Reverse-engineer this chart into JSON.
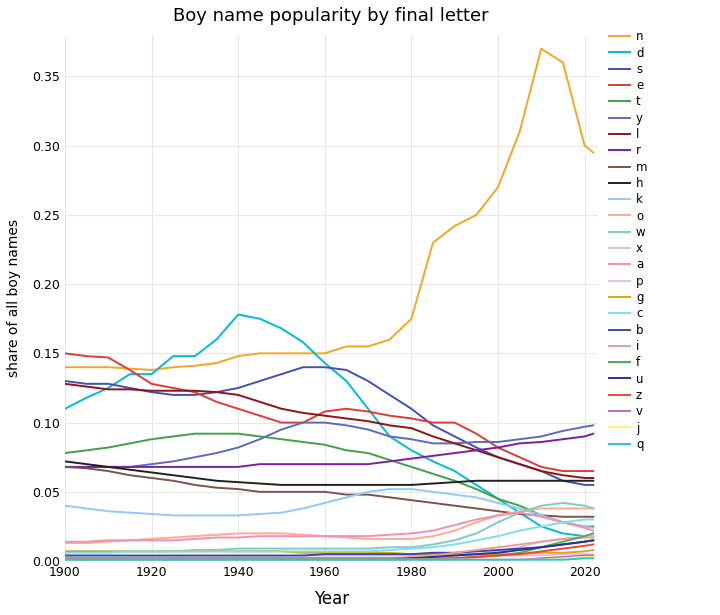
{
  "title": "Boy name popularity by final letter",
  "xlabel": "Year",
  "ylabel": "share of all boy names",
  "years": [
    1900,
    1905,
    1910,
    1915,
    1920,
    1925,
    1930,
    1935,
    1940,
    1945,
    1950,
    1955,
    1960,
    1965,
    1970,
    1975,
    1980,
    1985,
    1990,
    1995,
    2000,
    2005,
    2010,
    2015,
    2020,
    2022
  ],
  "series": {
    "n": {
      "color": "#F5A623",
      "values": [
        0.14,
        0.14,
        0.14,
        0.139,
        0.138,
        0.14,
        0.141,
        0.143,
        0.148,
        0.15,
        0.15,
        0.15,
        0.15,
        0.155,
        0.155,
        0.16,
        0.175,
        0.23,
        0.242,
        0.25,
        0.27,
        0.31,
        0.37,
        0.36,
        0.3,
        0.295
      ]
    },
    "d": {
      "color": "#00BCD4",
      "values": [
        0.11,
        0.118,
        0.125,
        0.135,
        0.135,
        0.148,
        0.148,
        0.16,
        0.178,
        0.175,
        0.168,
        0.158,
        0.143,
        0.13,
        0.11,
        0.09,
        0.08,
        0.072,
        0.065,
        0.055,
        0.045,
        0.035,
        0.025,
        0.02,
        0.018,
        0.018
      ]
    },
    "s": {
      "color": "#3F51B5",
      "values": [
        0.13,
        0.128,
        0.128,
        0.125,
        0.122,
        0.12,
        0.12,
        0.122,
        0.125,
        0.13,
        0.135,
        0.14,
        0.14,
        0.138,
        0.13,
        0.12,
        0.11,
        0.098,
        0.09,
        0.082,
        0.075,
        0.07,
        0.065,
        0.058,
        0.055,
        0.055
      ]
    },
    "e": {
      "color": "#E53935",
      "values": [
        0.15,
        0.148,
        0.147,
        0.138,
        0.128,
        0.125,
        0.122,
        0.115,
        0.11,
        0.105,
        0.1,
        0.1,
        0.108,
        0.11,
        0.108,
        0.105,
        0.103,
        0.1,
        0.1,
        0.092,
        0.082,
        0.075,
        0.068,
        0.065,
        0.065,
        0.065
      ]
    },
    "t": {
      "color": "#43A047",
      "values": [
        0.078,
        0.08,
        0.082,
        0.085,
        0.088,
        0.09,
        0.092,
        0.092,
        0.092,
        0.09,
        0.088,
        0.086,
        0.084,
        0.08,
        0.078,
        0.073,
        0.068,
        0.063,
        0.058,
        0.052,
        0.045,
        0.04,
        0.033,
        0.028,
        0.025,
        0.025
      ]
    },
    "y": {
      "color": "#5C6BC0",
      "values": [
        0.068,
        0.068,
        0.068,
        0.068,
        0.07,
        0.072,
        0.075,
        0.078,
        0.082,
        0.088,
        0.095,
        0.1,
        0.1,
        0.098,
        0.095,
        0.09,
        0.088,
        0.085,
        0.085,
        0.086,
        0.086,
        0.088,
        0.09,
        0.094,
        0.097,
        0.098
      ]
    },
    "l": {
      "color": "#B71C1C",
      "values": [
        0.128,
        0.126,
        0.124,
        0.124,
        0.123,
        0.123,
        0.123,
        0.122,
        0.12,
        0.115,
        0.11,
        0.107,
        0.105,
        0.103,
        0.101,
        0.098,
        0.096,
        0.09,
        0.085,
        0.08,
        0.075,
        0.07,
        0.065,
        0.062,
        0.06,
        0.06
      ]
    },
    "r": {
      "color": "#7B1FA2",
      "values": [
        0.068,
        0.068,
        0.068,
        0.068,
        0.068,
        0.068,
        0.068,
        0.068,
        0.068,
        0.07,
        0.07,
        0.07,
        0.07,
        0.07,
        0.07,
        0.072,
        0.074,
        0.076,
        0.078,
        0.08,
        0.082,
        0.085,
        0.086,
        0.088,
        0.09,
        0.092
      ]
    },
    "m": {
      "color": "#E65100",
      "values": [
        0.068,
        0.067,
        0.065,
        0.062,
        0.06,
        0.058,
        0.055,
        0.053,
        0.052,
        0.05,
        0.05,
        0.05,
        0.05,
        0.048,
        0.048,
        0.046,
        0.044,
        0.042,
        0.04,
        0.038,
        0.036,
        0.034,
        0.033,
        0.032,
        0.032,
        0.032
      ]
    },
    "h": {
      "color": "#1A237E",
      "values": [
        0.072,
        0.07,
        0.068,
        0.066,
        0.064,
        0.062,
        0.06,
        0.058,
        0.057,
        0.056,
        0.055,
        0.055,
        0.055,
        0.055,
        0.055,
        0.055,
        0.055,
        0.056,
        0.057,
        0.058,
        0.058,
        0.058,
        0.058,
        0.058,
        0.058,
        0.058
      ]
    },
    "k": {
      "color": "#90CAF9",
      "values": [
        0.04,
        0.038,
        0.036,
        0.035,
        0.034,
        0.033,
        0.033,
        0.033,
        0.033,
        0.034,
        0.035,
        0.038,
        0.042,
        0.046,
        0.05,
        0.052,
        0.052,
        0.05,
        0.048,
        0.046,
        0.042,
        0.038,
        0.033,
        0.028,
        0.025,
        0.024
      ]
    },
    "o": {
      "color": "#FFAB91",
      "values": [
        0.013,
        0.013,
        0.014,
        0.015,
        0.016,
        0.017,
        0.018,
        0.019,
        0.02,
        0.02,
        0.02,
        0.019,
        0.018,
        0.017,
        0.016,
        0.016,
        0.016,
        0.018,
        0.022,
        0.028,
        0.033,
        0.036,
        0.038,
        0.038,
        0.038,
        0.038
      ]
    },
    "w": {
      "color": "#00897B",
      "values": [
        0.007,
        0.007,
        0.007,
        0.007,
        0.007,
        0.007,
        0.008,
        0.008,
        0.009,
        0.009,
        0.009,
        0.009,
        0.009,
        0.009,
        0.009,
        0.01,
        0.01,
        0.012,
        0.015,
        0.02,
        0.028,
        0.035,
        0.04,
        0.042,
        0.04,
        0.038
      ]
    },
    "x": {
      "color": "#D1C4E9",
      "values": [
        0.001,
        0.001,
        0.001,
        0.001,
        0.001,
        0.001,
        0.001,
        0.001,
        0.001,
        0.001,
        0.001,
        0.001,
        0.001,
        0.001,
        0.001,
        0.001,
        0.002,
        0.003,
        0.004,
        0.005,
        0.007,
        0.01,
        0.014,
        0.016,
        0.018,
        0.018
      ]
    },
    "a": {
      "color": "#F48FB1",
      "values": [
        0.014,
        0.014,
        0.015,
        0.015,
        0.015,
        0.015,
        0.016,
        0.017,
        0.017,
        0.018,
        0.018,
        0.018,
        0.018,
        0.018,
        0.018,
        0.019,
        0.02,
        0.022,
        0.026,
        0.03,
        0.033,
        0.035,
        0.032,
        0.028,
        0.024,
        0.022
      ]
    },
    "p": {
      "color": "#CE93D8",
      "values": [
        0.004,
        0.004,
        0.004,
        0.004,
        0.004,
        0.004,
        0.004,
        0.004,
        0.004,
        0.004,
        0.004,
        0.004,
        0.004,
        0.004,
        0.004,
        0.004,
        0.004,
        0.004,
        0.004,
        0.004,
        0.004,
        0.004,
        0.004,
        0.005,
        0.005,
        0.005
      ]
    },
    "g": {
      "color": "#D4AC0D",
      "values": [
        0.007,
        0.007,
        0.007,
        0.007,
        0.007,
        0.007,
        0.007,
        0.007,
        0.007,
        0.007,
        0.007,
        0.006,
        0.006,
        0.006,
        0.006,
        0.006,
        0.005,
        0.005,
        0.005,
        0.005,
        0.005,
        0.005,
        0.006,
        0.006,
        0.007,
        0.008
      ]
    },
    "c": {
      "color": "#80DEEA",
      "values": [
        0.006,
        0.006,
        0.006,
        0.007,
        0.007,
        0.007,
        0.007,
        0.007,
        0.007,
        0.007,
        0.007,
        0.007,
        0.007,
        0.007,
        0.007,
        0.008,
        0.009,
        0.01,
        0.012,
        0.015,
        0.018,
        0.022,
        0.025,
        0.028,
        0.03,
        0.03
      ]
    },
    "b": {
      "color": "#5C6BC0",
      "values": [
        0.004,
        0.004,
        0.004,
        0.004,
        0.004,
        0.004,
        0.004,
        0.004,
        0.004,
        0.004,
        0.004,
        0.004,
        0.005,
        0.005,
        0.005,
        0.005,
        0.005,
        0.006,
        0.006,
        0.007,
        0.008,
        0.009,
        0.01,
        0.012,
        0.014,
        0.015
      ]
    },
    "i": {
      "color": "#EF9A9A",
      "values": [
        0.002,
        0.002,
        0.002,
        0.002,
        0.002,
        0.002,
        0.002,
        0.002,
        0.002,
        0.002,
        0.002,
        0.002,
        0.002,
        0.002,
        0.002,
        0.002,
        0.003,
        0.004,
        0.006,
        0.008,
        0.01,
        0.012,
        0.014,
        0.016,
        0.017,
        0.017
      ]
    },
    "f": {
      "color": "#4CAF50",
      "values": [
        0.002,
        0.002,
        0.002,
        0.002,
        0.002,
        0.002,
        0.002,
        0.002,
        0.002,
        0.002,
        0.002,
        0.002,
        0.002,
        0.002,
        0.002,
        0.002,
        0.002,
        0.002,
        0.002,
        0.003,
        0.004,
        0.006,
        0.01,
        0.014,
        0.018,
        0.02
      ]
    },
    "u": {
      "color": "#3F51B5",
      "values": [
        0.001,
        0.001,
        0.001,
        0.001,
        0.001,
        0.001,
        0.001,
        0.001,
        0.001,
        0.001,
        0.001,
        0.001,
        0.001,
        0.001,
        0.001,
        0.001,
        0.002,
        0.003,
        0.004,
        0.005,
        0.006,
        0.008,
        0.01,
        0.012,
        0.014,
        0.015
      ]
    },
    "z": {
      "color": "#F44336",
      "values": [
        0.001,
        0.001,
        0.001,
        0.001,
        0.001,
        0.001,
        0.001,
        0.001,
        0.001,
        0.001,
        0.001,
        0.001,
        0.001,
        0.001,
        0.001,
        0.001,
        0.001,
        0.001,
        0.002,
        0.003,
        0.004,
        0.005,
        0.007,
        0.009,
        0.011,
        0.012
      ]
    },
    "v": {
      "color": "#CE93D8",
      "values": [
        0.001,
        0.001,
        0.001,
        0.001,
        0.001,
        0.001,
        0.001,
        0.001,
        0.001,
        0.001,
        0.001,
        0.001,
        0.001,
        0.001,
        0.001,
        0.001,
        0.001,
        0.001,
        0.001,
        0.001,
        0.001,
        0.001,
        0.002,
        0.003,
        0.004,
        0.004
      ]
    },
    "j": {
      "color": "#FFF176",
      "values": [
        0.001,
        0.001,
        0.001,
        0.001,
        0.001,
        0.001,
        0.001,
        0.001,
        0.001,
        0.001,
        0.001,
        0.001,
        0.001,
        0.001,
        0.001,
        0.001,
        0.001,
        0.001,
        0.001,
        0.001,
        0.001,
        0.001,
        0.001,
        0.002,
        0.003,
        0.003
      ]
    },
    "q": {
      "color": "#00BCD4",
      "values": [
        0.001,
        0.001,
        0.001,
        0.001,
        0.001,
        0.001,
        0.001,
        0.001,
        0.001,
        0.001,
        0.001,
        0.001,
        0.001,
        0.001,
        0.001,
        0.001,
        0.001,
        0.001,
        0.001,
        0.001,
        0.001,
        0.001,
        0.001,
        0.001,
        0.002,
        0.002
      ]
    }
  },
  "bg_color": "#ffffff",
  "grid_color": "#e8e8e8",
  "xlim": [
    1900,
    2023
  ],
  "ylim": [
    0,
    0.38
  ],
  "yticks": [
    0.0,
    0.05,
    0.1,
    0.15,
    0.2,
    0.25,
    0.3,
    0.35
  ],
  "xticks": [
    1900,
    1920,
    1940,
    1960,
    1980,
    2000,
    2020
  ]
}
